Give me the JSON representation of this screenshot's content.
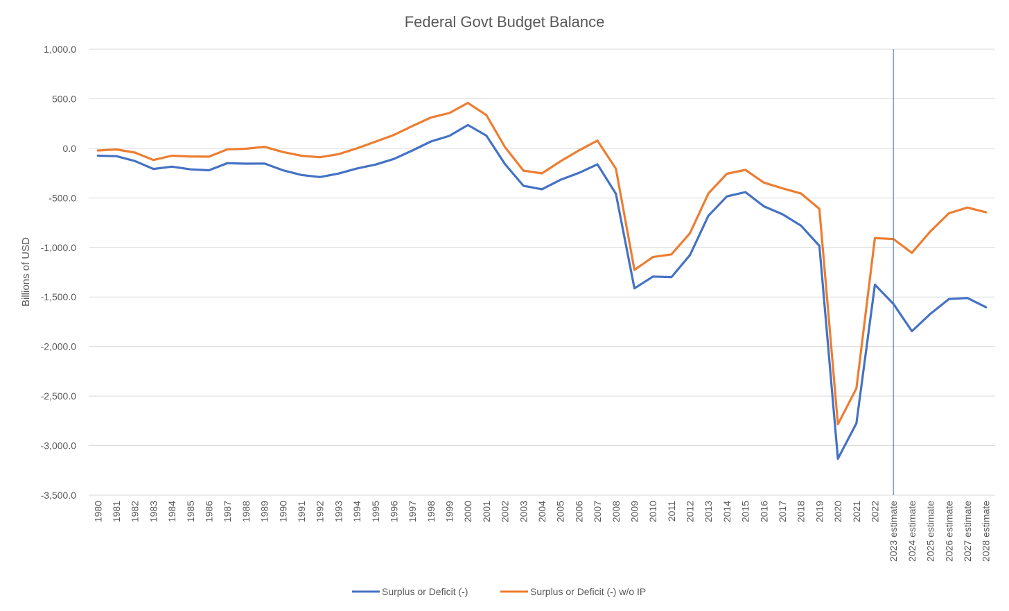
{
  "chart_data": {
    "type": "line",
    "title": "Federal Govt Budget Balance",
    "xlabel": "",
    "ylabel": "Billions of USD",
    "ylim": [
      -3500,
      1000
    ],
    "yticks": [
      1000,
      500,
      0,
      -500,
      -1000,
      -1500,
      -2000,
      -2500,
      -3000,
      -3500
    ],
    "ytick_labels": [
      "1,000.0",
      "500.0",
      "0.0",
      "-500.0",
      "-1,000.0",
      "-1,500.0",
      "-2,000.0",
      "-2,500.0",
      "-3,000.0",
      "-3,500.0"
    ],
    "grid": true,
    "legend": "bottom-center",
    "divider_category": "2023 estimate",
    "divider_color": "#4472c4",
    "categories": [
      "1980",
      "1981",
      "1982",
      "1983",
      "1984",
      "1985",
      "1986",
      "1987",
      "1988",
      "1989",
      "1990",
      "1991",
      "1992",
      "1993",
      "1994",
      "1995",
      "1996",
      "1997",
      "1998",
      "1999",
      "2000",
      "2001",
      "2002",
      "2003",
      "2004",
      "2005",
      "2006",
      "2007",
      "2008",
      "2009",
      "2010",
      "2011",
      "2012",
      "2013",
      "2014",
      "2015",
      "2016",
      "2017",
      "2018",
      "2019",
      "2020",
      "2021",
      "2022",
      "2023 estimate",
      "2024 estimate",
      "2025 estimate",
      "2026 estimate",
      "2027 estimate",
      "2028 estimate"
    ],
    "series": [
      {
        "name": "Surplus or Deficit (-)",
        "color": "#4472c4",
        "values": [
          -74,
          -79,
          -128,
          -208,
          -185,
          -212,
          -221,
          -150,
          -155,
          -153,
          -221,
          -269,
          -290,
          -255,
          -203,
          -164,
          -107,
          -22,
          69,
          126,
          236,
          128,
          -158,
          -378,
          -413,
          -318,
          -248,
          -161,
          -459,
          -1413,
          -1294,
          -1300,
          -1077,
          -680,
          -485,
          -442,
          -585,
          -665,
          -779,
          -984,
          -3132,
          -2775,
          -1376,
          -1570,
          -1845,
          -1670,
          -1521,
          -1510,
          -1603
        ]
      },
      {
        "name": "Surplus or Deficit (-) w/o IP",
        "color": "#ed7d31",
        "values": [
          -22,
          -11,
          -43,
          -118,
          -74,
          -82,
          -84,
          -10,
          -4,
          15,
          -37,
          -75,
          -90,
          -59,
          0,
          68,
          135,
          225,
          311,
          356,
          458,
          335,
          13,
          -225,
          -253,
          -131,
          -21,
          78,
          -206,
          -1227,
          -1097,
          -1070,
          -857,
          -456,
          -256,
          -218,
          -346,
          -403,
          -455,
          -610,
          -2785,
          -2422,
          -906,
          -915,
          -1055,
          -838,
          -655,
          -598,
          -645
        ]
      }
    ]
  }
}
